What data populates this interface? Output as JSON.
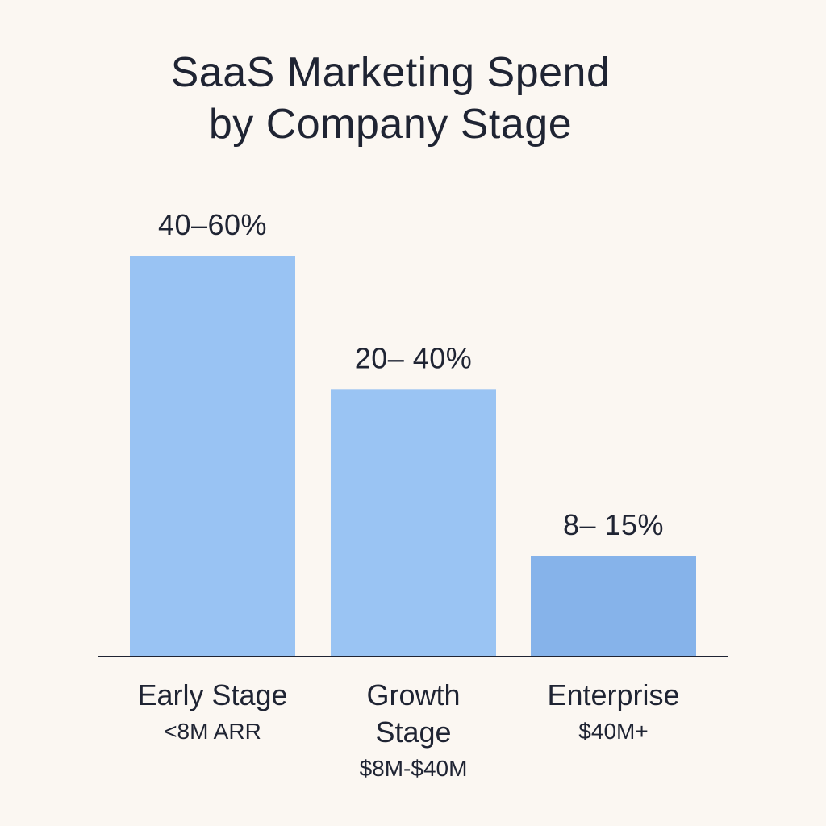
{
  "colors": {
    "background": "#fbf7f2",
    "text": "#1f2433",
    "baseline": "#1f2433"
  },
  "chart_data": {
    "type": "bar",
    "title": "SaaS Marketing Spend by Company Stage",
    "title_lines": [
      "SaaS Marketing Spend",
      "by Company Stage"
    ],
    "xlabel": "",
    "ylabel": "",
    "ylim": [
      0,
      60
    ],
    "grid": false,
    "legend": "none",
    "categories": [
      "Early Stage",
      "Growth Stage",
      "Enterprise"
    ],
    "category_name_lines": [
      [
        "Early Stage"
      ],
      [
        "Growth",
        "Stage"
      ],
      [
        "Enterprise"
      ]
    ],
    "category_sublabels": [
      "<8M ARR",
      "$8M-$40M",
      "$40M+"
    ],
    "ranges": [
      [
        40,
        60
      ],
      [
        20,
        40
      ],
      [
        8,
        15
      ]
    ],
    "values": [
      60,
      40,
      15
    ],
    "data_labels": [
      "40–60%",
      "20– 40%",
      "8– 15%"
    ],
    "bar_colors": [
      "#99c3f3",
      "#9ac4f3",
      "#86b3ea"
    ]
  }
}
